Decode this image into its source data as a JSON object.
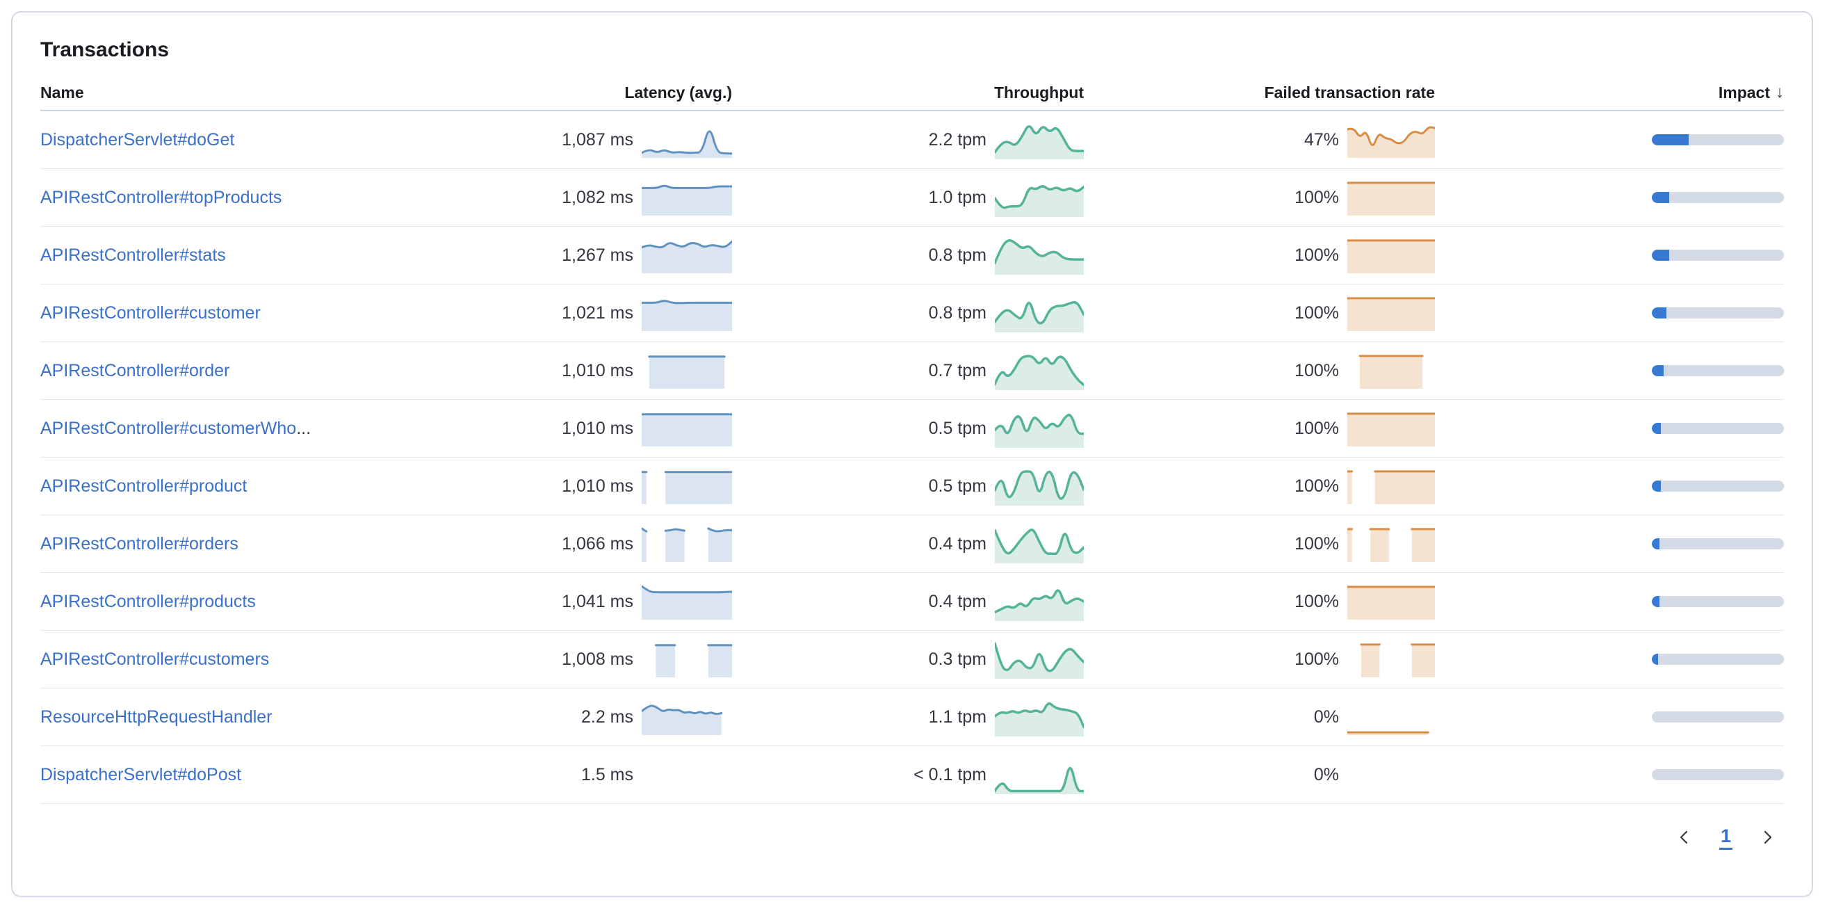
{
  "panel": {
    "title": "Transactions"
  },
  "table": {
    "columns": {
      "name": "Name",
      "latency": "Latency (avg.)",
      "throughput": "Throughput",
      "failed_rate": "Failed transaction rate",
      "impact": "Impact"
    },
    "sort": {
      "column": "impact",
      "direction": "desc",
      "icon": "↓"
    },
    "rows": [
      {
        "name": "DispatcherServlet#doGet",
        "latency": "1,087 ms",
        "throughput": "2.2 tpm",
        "failed_rate": "47%",
        "impact_pct": 28,
        "latency_spark": [
          0.1,
          0.22,
          0.1,
          0.2,
          0.1,
          0.13,
          0.1,
          0.1,
          0.12,
          0.97,
          0.12,
          0.08,
          0.08
        ],
        "throughput_spark": [
          0.15,
          0.42,
          0.45,
          0.32,
          0.6,
          0.97,
          0.6,
          0.92,
          0.7,
          0.88,
          0.55,
          0.2,
          0.18,
          0.18
        ],
        "failed_spark": [
          0.82,
          0.88,
          0.55,
          0.8,
          0.2,
          0.72,
          0.55,
          0.52,
          0.38,
          0.42,
          0.7,
          0.76,
          0.66,
          0.9,
          0.86
        ]
      },
      {
        "name": "APIRestController#topProducts",
        "latency": "1,082 ms",
        "throughput": "1.0 tpm",
        "failed_rate": "100%",
        "impact_pct": 13,
        "latency_spark": [
          0.79,
          0.79,
          0.79,
          0.88,
          0.79,
          0.79,
          0.79,
          0.79,
          0.79,
          0.79,
          0.84,
          0.84,
          0.84
        ],
        "throughput_spark": [
          0.48,
          0.18,
          0.25,
          0.25,
          0.27,
          0.8,
          0.72,
          0.85,
          0.7,
          0.8,
          0.68,
          0.78,
          0.65,
          0.8
        ],
        "failed_spark": [
          0.95,
          0.95,
          0.95,
          0.95,
          0.95,
          0.95,
          0.95,
          0.95,
          0.95,
          0.95,
          0.95,
          0.95,
          0.95
        ]
      },
      {
        "name": "APIRestController#stats",
        "latency": "1,267 ms",
        "throughput": "0.8 tpm",
        "failed_rate": "100%",
        "impact_pct": 13,
        "latency_spark": [
          0.74,
          0.82,
          0.76,
          0.73,
          0.9,
          0.8,
          0.75,
          0.88,
          0.86,
          0.74,
          0.82,
          0.78,
          0.74,
          0.92
        ],
        "throughput_spark": [
          0.28,
          0.75,
          0.95,
          0.85,
          0.68,
          0.78,
          0.55,
          0.45,
          0.58,
          0.6,
          0.42,
          0.38,
          0.38,
          0.38
        ],
        "failed_spark": [
          0.95,
          0.95,
          0.95,
          0.95,
          0.95,
          0.95,
          0.95,
          0.95,
          0.95,
          0.95,
          0.95,
          0.95,
          0.95
        ]
      },
      {
        "name": "APIRestController#customer",
        "latency": "1,021 ms",
        "throughput": "0.8 tpm",
        "failed_rate": "100%",
        "impact_pct": 11,
        "latency_spark": [
          0.81,
          0.81,
          0.81,
          0.89,
          0.81,
          0.8,
          0.81,
          0.81,
          0.81,
          0.81,
          0.81,
          0.81,
          0.81
        ],
        "throughput_spark": [
          0.25,
          0.52,
          0.6,
          0.42,
          0.3,
          0.95,
          0.25,
          0.18,
          0.6,
          0.7,
          0.7,
          0.78,
          0.82,
          0.45
        ],
        "failed_spark": [
          0.95,
          0.95,
          0.95,
          0.95,
          0.95,
          0.95,
          0.95,
          0.95,
          0.95,
          0.95,
          0.95,
          0.95,
          0.95
        ]
      },
      {
        "name": "APIRestController#order",
        "latency": "1,010 ms",
        "throughput": "0.7 tpm",
        "failed_rate": "100%",
        "impact_pct": 9,
        "latency_spark": [
          null,
          0.93,
          0.93,
          0.93,
          0.93,
          0.93,
          0.93,
          0.93,
          0.93,
          0.93,
          0.93,
          0.93,
          null
        ],
        "throughput_spark": [
          0.12,
          0.55,
          0.3,
          0.5,
          0.85,
          0.92,
          0.9,
          0.65,
          0.92,
          0.62,
          0.92,
          0.85,
          0.5,
          0.25,
          0.1
        ],
        "failed_spark": [
          null,
          null,
          0.95,
          0.95,
          0.95,
          0.95,
          0.95,
          0.95,
          0.95,
          0.95,
          0.95,
          0.95,
          0.95,
          null,
          null
        ]
      },
      {
        "name": "APIRestController#customerWho",
        "ellipsis": "...",
        "latency": "1,010 ms",
        "throughput": "0.5 tpm",
        "failed_rate": "100%",
        "impact_pct": 7,
        "latency_spark": [
          0.93,
          0.93,
          0.93,
          0.93,
          0.93,
          0.93,
          0.93,
          0.93,
          0.93,
          0.93,
          0.93,
          0.93,
          0.93
        ],
        "throughput_spark": [
          0.45,
          0.68,
          0.25,
          0.78,
          0.88,
          0.28,
          0.85,
          0.72,
          0.45,
          0.68,
          0.5,
          0.82,
          0.92,
          0.35,
          0.35
        ],
        "failed_spark": [
          0.95,
          0.95,
          0.95,
          0.95,
          0.95,
          0.95,
          0.95,
          0.95,
          0.95,
          0.95,
          0.95,
          0.95,
          0.95
        ]
      },
      {
        "name": "APIRestController#product",
        "latency": "1,010 ms",
        "throughput": "0.5 tpm",
        "failed_rate": "100%",
        "impact_pct": 7,
        "latency_spark": [
          0.93,
          0.93,
          null,
          null,
          null,
          0.93,
          0.93,
          0.93,
          0.93,
          0.93,
          0.93,
          0.93,
          0.93,
          0.93,
          0.93,
          0.93,
          0.93,
          0.93,
          0.93,
          0.93
        ],
        "throughput_spark": [
          0.38,
          0.85,
          0.12,
          0.3,
          0.88,
          0.92,
          0.9,
          0.18,
          0.88,
          0.92,
          0.12,
          0.18,
          0.92,
          0.85,
          0.4
        ],
        "failed_spark": [
          0.95,
          0.95,
          null,
          null,
          null,
          null,
          0.95,
          0.95,
          0.95,
          0.95,
          0.95,
          0.95,
          0.95,
          0.95,
          0.95,
          0.95,
          0.95,
          0.95,
          0.95,
          0.95
        ]
      },
      {
        "name": "APIRestController#orders",
        "latency": "1,066 ms",
        "throughput": "0.4 tpm",
        "failed_rate": "100%",
        "impact_pct": 6,
        "latency_spark": [
          0.97,
          0.88,
          null,
          null,
          null,
          0.9,
          0.91,
          0.95,
          0.93,
          0.9,
          null,
          null,
          null,
          null,
          0.97,
          0.9,
          0.88,
          0.9,
          0.92,
          0.92
        ],
        "throughput_spark": [
          0.88,
          0.45,
          0.18,
          0.35,
          0.6,
          0.8,
          0.95,
          0.55,
          0.22,
          0.22,
          0.22,
          0.95,
          0.3,
          0.22,
          0.4
        ],
        "failed_spark": [
          0.95,
          0.95,
          null,
          null,
          null,
          0.95,
          0.95,
          0.95,
          0.95,
          0.95,
          null,
          null,
          null,
          null,
          0.95,
          0.95,
          0.95,
          0.95,
          0.95,
          0.95
        ]
      },
      {
        "name": "APIRestController#products",
        "latency": "1,041 ms",
        "throughput": "0.4 tpm",
        "failed_rate": "100%",
        "impact_pct": 6,
        "latency_spark": [
          0.97,
          0.8,
          0.78,
          0.78,
          0.78,
          0.78,
          0.78,
          0.78,
          0.78,
          0.78,
          0.78,
          0.79,
          0.8
        ],
        "throughput_spark": [
          0.2,
          0.28,
          0.38,
          0.3,
          0.48,
          0.32,
          0.62,
          0.55,
          0.68,
          0.55,
          0.92,
          0.4,
          0.52,
          0.6,
          0.5
        ],
        "failed_spark": [
          0.95,
          0.95,
          0.95,
          0.95,
          0.95,
          0.95,
          0.95,
          0.95,
          0.95,
          0.95,
          0.95,
          0.95,
          0.95
        ]
      },
      {
        "name": "APIRestController#customers",
        "latency": "1,008 ms",
        "throughput": "0.3 tpm",
        "failed_rate": "100%",
        "impact_pct": 4.5,
        "latency_spark": [
          null,
          null,
          null,
          0.93,
          0.93,
          0.93,
          0.93,
          0.93,
          null,
          null,
          null,
          null,
          null,
          null,
          0.93,
          0.93,
          0.93,
          0.93,
          0.93,
          0.93
        ],
        "throughput_spark": [
          0.95,
          0.3,
          0.15,
          0.42,
          0.48,
          0.25,
          0.25,
          0.78,
          0.2,
          0.15,
          0.45,
          0.72,
          0.82,
          0.6,
          0.42
        ],
        "failed_spark": [
          null,
          null,
          null,
          0.95,
          0.95,
          0.95,
          0.95,
          0.95,
          null,
          null,
          null,
          null,
          null,
          null,
          0.95,
          0.95,
          0.95,
          0.95,
          0.95,
          0.95
        ]
      },
      {
        "name": "ResourceHttpRequestHandler",
        "latency": "2.2 ms",
        "throughput": "1.1 tpm",
        "failed_rate": "0%",
        "impact_pct": 0,
        "latency_spark": [
          0.68,
          0.8,
          0.86,
          0.78,
          0.66,
          0.74,
          0.7,
          0.72,
          0.62,
          0.66,
          0.6,
          0.67,
          0.59,
          0.65,
          0.58,
          0.62,
          null,
          null
        ],
        "throughput_spark": [
          0.52,
          0.65,
          0.6,
          0.68,
          0.6,
          0.7,
          0.63,
          0.7,
          0.6,
          0.93,
          0.78,
          0.72,
          0.7,
          0.66,
          0.6,
          0.22
        ],
        "failed_spark": [
          0.03,
          0.03,
          0.03,
          0.03,
          0.03,
          0.03,
          0.03,
          0.03,
          0.03,
          0.03,
          0.03,
          0.03,
          0.03,
          null
        ]
      },
      {
        "name": "DispatcherServlet#doPost",
        "latency": "1.5 ms",
        "throughput": "< 0.1 tpm",
        "failed_rate": "0%",
        "impact_pct": 0,
        "latency_spark": null,
        "throughput_spark": [
          0.04,
          0.35,
          0.04,
          0.04,
          0.04,
          0.04,
          0.04,
          0.04,
          0.04,
          0.04,
          0.04,
          0.9,
          0.04,
          0.04
        ],
        "failed_spark": null
      }
    ]
  },
  "pagination": {
    "current_page": "1",
    "prev": "chevron-left",
    "next": "chevron-right"
  },
  "colors": {
    "link": "#3a70c9",
    "text": "#343741",
    "panel_border": "#d3dae6",
    "head_border": "#ccd4e1",
    "row_border": "#e0e6f0",
    "latency_stroke": "#6092c0",
    "latency_fill": "#dbe5f1",
    "throughput_stroke": "#54b399",
    "throughput_fill": "#dcede7",
    "failed_stroke": "#d98c43",
    "failed_fill": "#f5e3d1",
    "impact_fill": "#3879d1",
    "impact_track": "#d3dae6"
  }
}
